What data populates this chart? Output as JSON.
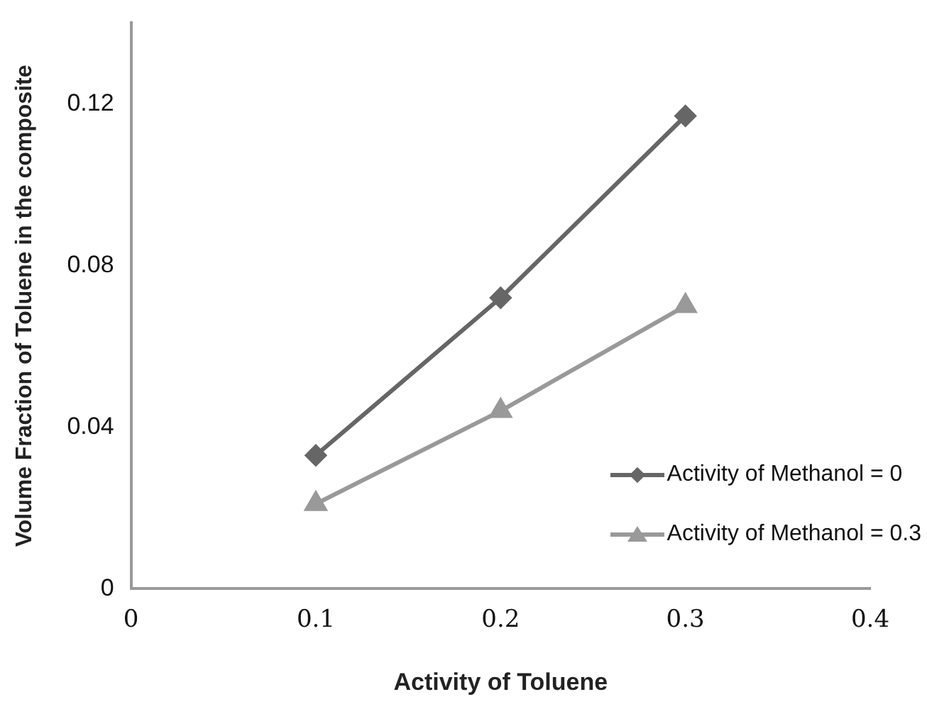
{
  "chart_data": {
    "type": "line",
    "xlabel": "Activity of Toluene",
    "ylabel": "Volume Fraction of Toluene in the composite",
    "xlim": [
      0,
      0.4
    ],
    "xticks": [
      0,
      0.1,
      0.2,
      0.3,
      0.4
    ],
    "ylim": [
      0,
      0.14
    ],
    "yticks": [
      0,
      0.04,
      0.08,
      0.12
    ],
    "grid": false,
    "legend": "bottom right",
    "line_style": "solid",
    "series": [
      {
        "name": "Activity of Methanol = 0",
        "color": "#666666",
        "marker": "diamond",
        "x": [
          0.1,
          0.2,
          0.3
        ],
        "values": [
          0.033,
          0.072,
          0.117
        ]
      },
      {
        "name": "Activity of Methanol = 0.3",
        "color": "#999999",
        "marker": "triangle",
        "x": [
          0.1,
          0.2,
          0.3
        ],
        "values": [
          0.021,
          0.044,
          0.07
        ]
      }
    ]
  }
}
